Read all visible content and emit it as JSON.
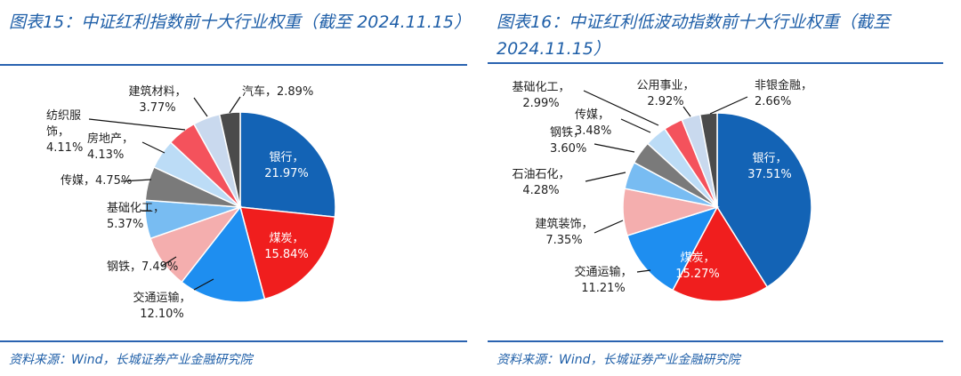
{
  "charts": [
    {
      "title": "图表15：中证红利指数前十大行业权重（截至 2024.11.15）",
      "source": "资料来源：Wind，长城证券产业金融研究院",
      "chart_data": {
        "type": "pie",
        "slices": [
          {
            "label": "银行",
            "value": 21.97,
            "text": "21.97%",
            "color": "#1363b5",
            "text_color": "#ffffff"
          },
          {
            "label": "煤炭",
            "value": 15.84,
            "text": "15.84%",
            "color": "#f01e1e",
            "text_color": "#ffffff"
          },
          {
            "label": "交通运输",
            "value": 12.1,
            "text": "12.10%",
            "color": "#1e8ef0",
            "text_color": "#222222"
          },
          {
            "label": "钢铁",
            "value": 7.49,
            "text": "7.49%",
            "color": "#f4aeae",
            "text_color": "#222222"
          },
          {
            "label": "基础化工",
            "value": 5.37,
            "text": "5.37%",
            "color": "#78bcf2",
            "text_color": "#222222"
          },
          {
            "label": "传媒",
            "value": 4.75,
            "text": "4.75%",
            "color": "#7a7a7a",
            "text_color": "#222222"
          },
          {
            "label": "房地产",
            "value": 4.13,
            "text": "4.13%",
            "color": "#bcdcf6",
            "text_color": "#222222"
          },
          {
            "label": "纺织服饰",
            "value": 4.11,
            "text": "4.11%",
            "color": "#f4525c",
            "text_color": "#222222"
          },
          {
            "label": "建筑材料",
            "value": 3.77,
            "text": "3.77%",
            "color": "#c9d9ee",
            "text_color": "#222222"
          },
          {
            "label": "汽车",
            "value": 2.89,
            "text": "2.89%",
            "color": "#4b4b4b",
            "text_color": "#222222"
          }
        ]
      }
    },
    {
      "title": "图表16：中证红利低波动指数前十大行业权重（截至\n2024.11.15）",
      "source": "资料来源：Wind，长城证券产业金融研究院",
      "chart_data": {
        "type": "pie",
        "slices": [
          {
            "label": "银行",
            "value": 37.51,
            "text": "37.51%",
            "color": "#1363b5",
            "text_color": "#ffffff"
          },
          {
            "label": "煤炭",
            "value": 15.27,
            "text": "15.27%",
            "color": "#f01e1e",
            "text_color": "#ffffff"
          },
          {
            "label": "交通运输",
            "value": 11.21,
            "text": "11.21%",
            "color": "#1e8ef0",
            "text_color": "#222222"
          },
          {
            "label": "建筑装饰",
            "value": 7.35,
            "text": "7.35%",
            "color": "#f4aeae",
            "text_color": "#222222"
          },
          {
            "label": "石油石化",
            "value": 4.28,
            "text": "4.28%",
            "color": "#78bcf2",
            "text_color": "#222222"
          },
          {
            "label": "钢铁",
            "value": 3.6,
            "text": "3.60%",
            "color": "#7a7a7a",
            "text_color": "#222222"
          },
          {
            "label": "传媒",
            "value": 3.48,
            "text": "3.48%",
            "color": "#bcdcf6",
            "text_color": "#222222"
          },
          {
            "label": "基础化工",
            "value": 2.99,
            "text": "2.99%",
            "color": "#f4525c",
            "text_color": "#222222"
          },
          {
            "label": "公用事业",
            "value": 2.92,
            "text": "2.92%",
            "color": "#c9d9ee",
            "text_color": "#222222"
          },
          {
            "label": "非银金融",
            "value": 2.66,
            "text": "2.66%",
            "color": "#4b4b4b",
            "text_color": "#222222"
          }
        ]
      }
    }
  ]
}
